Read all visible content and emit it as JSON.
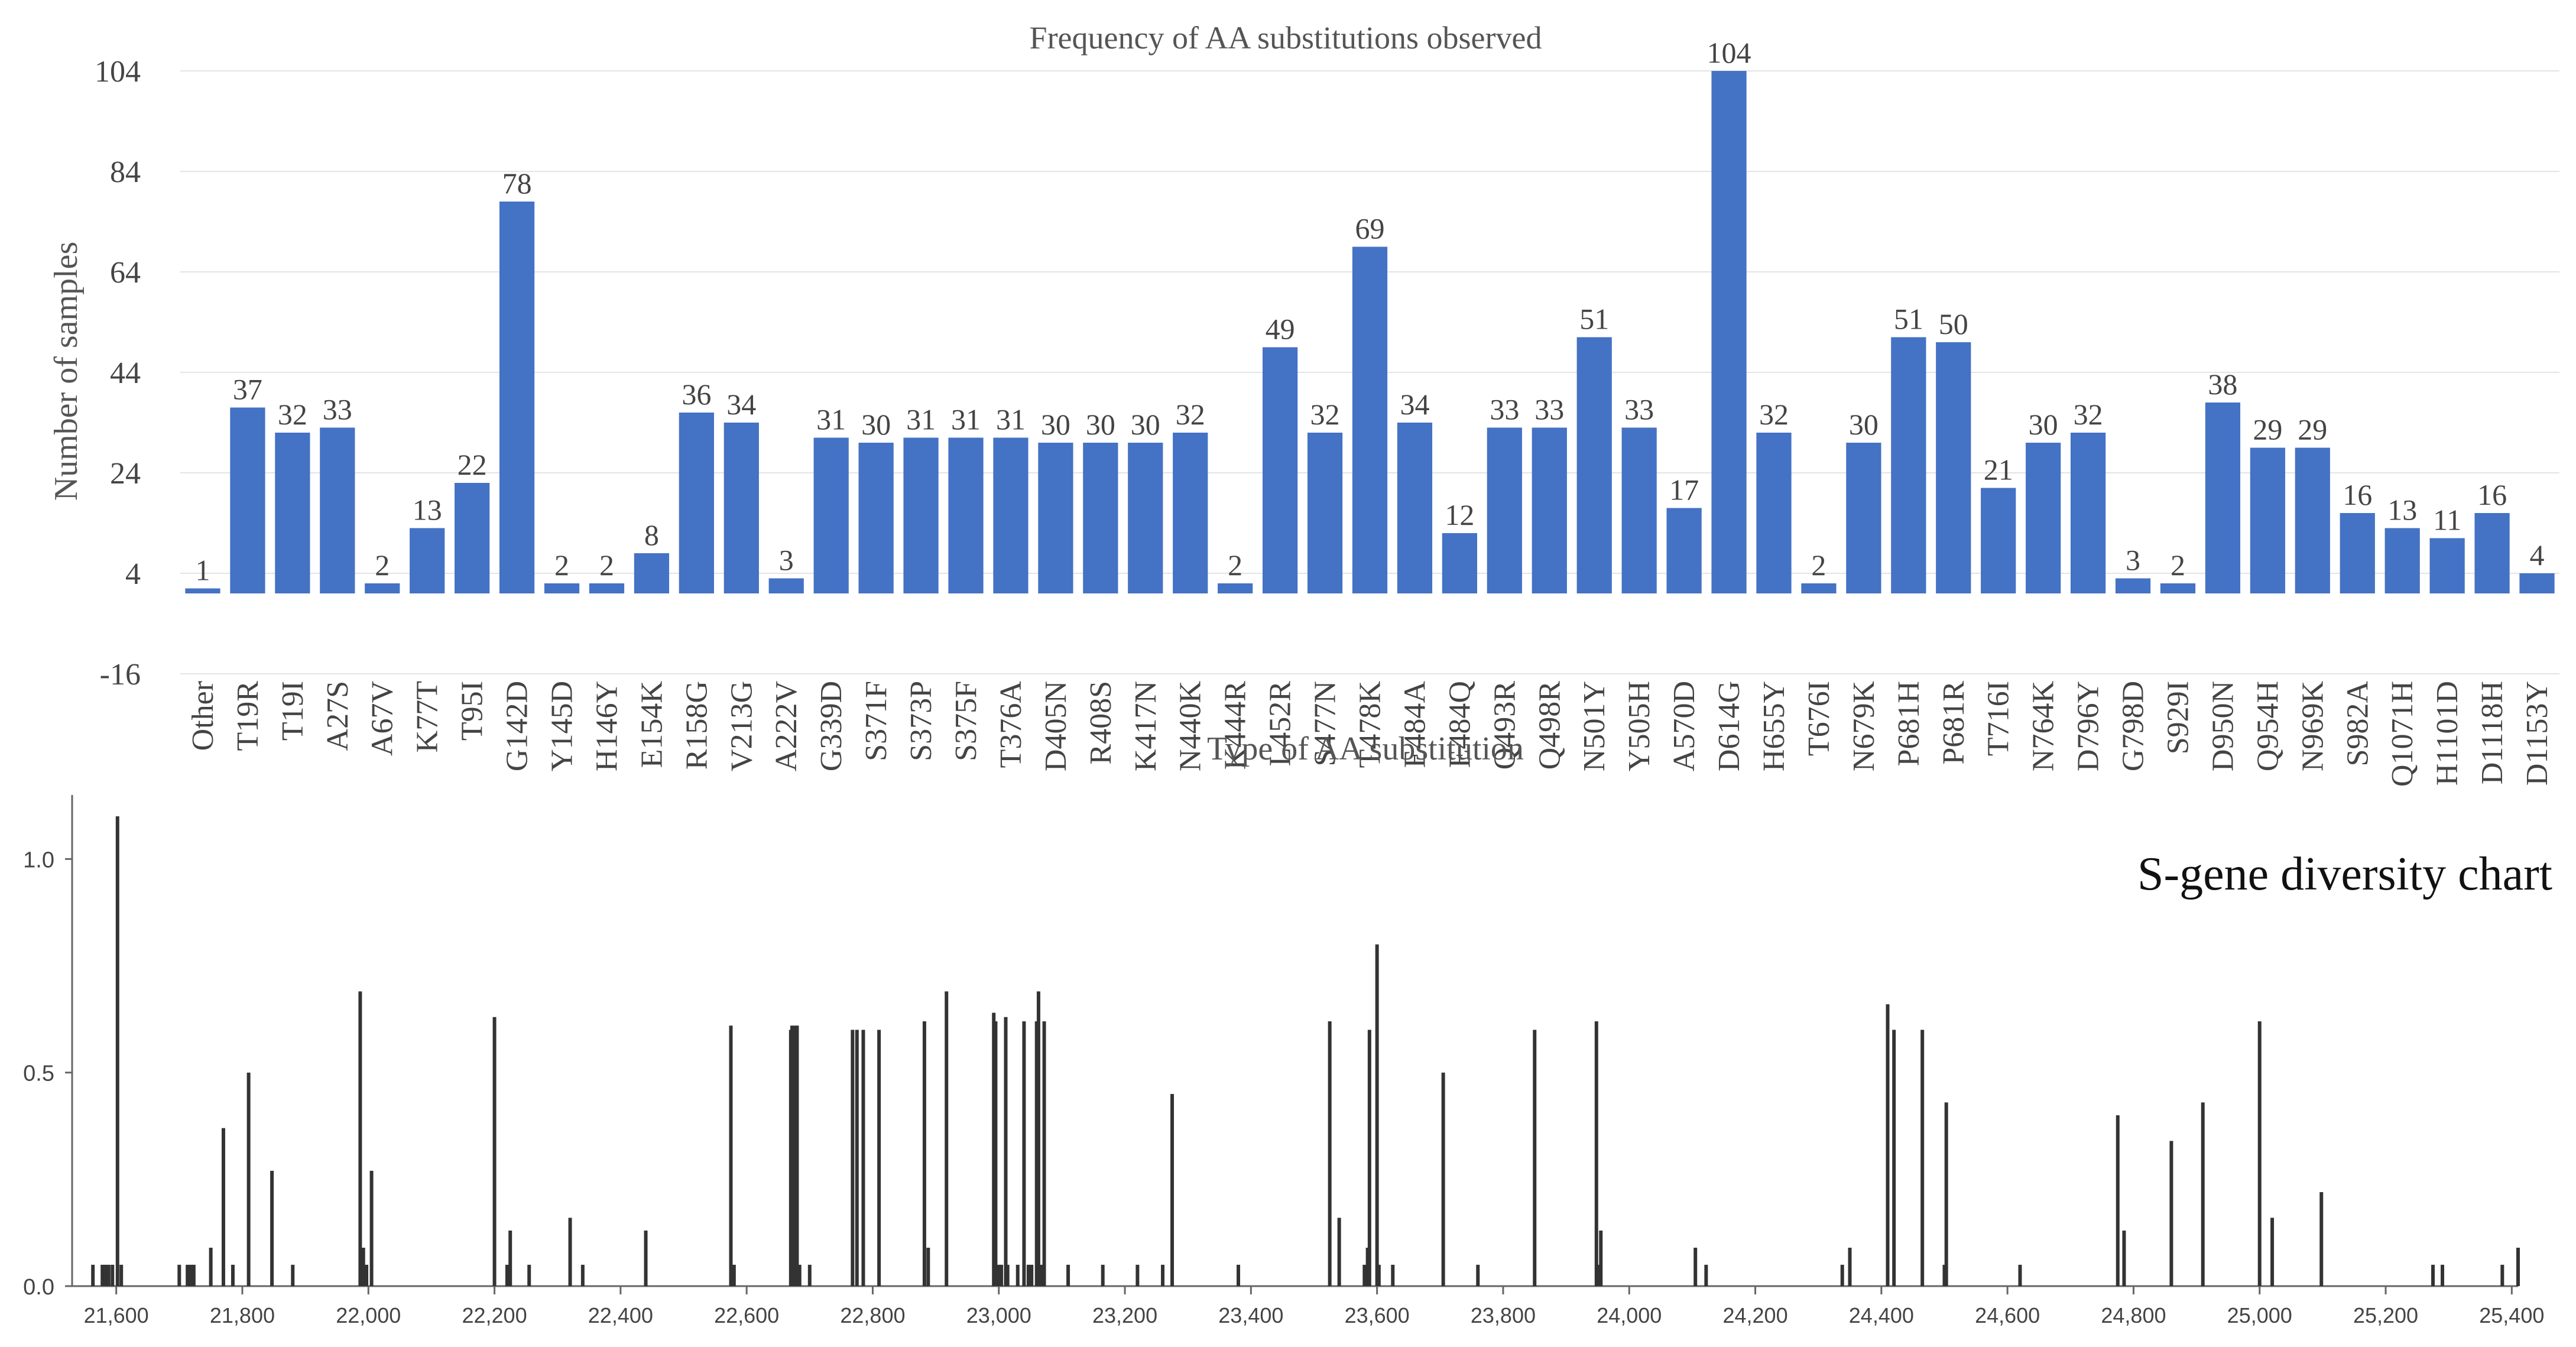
{
  "bar_chart_title": "Frequency of AA substitutions observed",
  "diversity_chart_title": "S-gene diversity chart",
  "colors": {
    "bar": "#4472C4",
    "spike": "#333333",
    "grid": "#e4e4e4",
    "axis": "#555555",
    "text": "#444444"
  },
  "chart_data": [
    {
      "type": "bar",
      "title": "Frequency of AA substitutions observed",
      "xlabel": "Type of AA substitution",
      "ylabel": "Number of samples",
      "ylim": [
        -16,
        104
      ],
      "yticks": [
        104,
        84,
        64,
        44,
        24,
        4,
        -16
      ],
      "grid": true,
      "categories": [
        "Other",
        "T19R",
        "T19I",
        "A27S",
        "A67V",
        "K77T",
        "T95I",
        "G142D",
        "Y145D",
        "H146Y",
        "E154K",
        "R158G",
        "V213G",
        "A222V",
        "G339D",
        "S371F",
        "S373P",
        "S375F",
        "T376A",
        "D405N",
        "R408S",
        "K417N",
        "N440K",
        "K444R",
        "L452R",
        "S477N",
        "T478K",
        "E484A",
        "E484Q",
        "Q493R",
        "Q498R",
        "N501Y",
        "Y505H",
        "A570D",
        "D614G",
        "H655Y",
        "T676I",
        "N679K",
        "P681H",
        "P681R",
        "T716I",
        "N764K",
        "D796Y",
        "G798D",
        "S929I",
        "D950N",
        "Q954H",
        "N969K",
        "S982A",
        "Q1071H",
        "H1101D",
        "D1118H",
        "D1153Y"
      ],
      "values": [
        1,
        37,
        32,
        33,
        2,
        13,
        22,
        78,
        2,
        2,
        8,
        36,
        34,
        3,
        31,
        30,
        31,
        31,
        31,
        30,
        30,
        30,
        32,
        2,
        49,
        32,
        69,
        34,
        12,
        33,
        33,
        51,
        33,
        17,
        104,
        32,
        2,
        30,
        51,
        50,
        21,
        30,
        32,
        3,
        2,
        38,
        29,
        29,
        16,
        13,
        11,
        16,
        4
      ]
    },
    {
      "type": "bar",
      "subtype": "spike",
      "title": "S-gene diversity chart",
      "ylim": [
        0,
        1.15
      ],
      "yticks": [
        "1.0",
        "0.5",
        "0.0"
      ],
      "ytick_values": [
        1.0,
        0.5,
        0.0
      ],
      "xlim": [
        21530,
        25410
      ],
      "xticks": [
        "21,600",
        "21,800",
        "22,000",
        "22,200",
        "22,400",
        "22,600",
        "22,800",
        "23,000",
        "23,200",
        "23,400",
        "23,600",
        "23,800",
        "24,000",
        "24,200",
        "24,400",
        "24,600",
        "24,800",
        "25,000",
        "25,200",
        "25,400"
      ],
      "xtick_values": [
        21600,
        21800,
        22000,
        22200,
        22400,
        22600,
        22800,
        23000,
        23200,
        23400,
        23600,
        23800,
        24000,
        24200,
        24400,
        24600,
        24800,
        25000,
        25200,
        25400
      ],
      "x": [
        21563,
        21578,
        21583,
        21588,
        21594,
        21602,
        21608,
        21700,
        21713,
        21718,
        21723,
        21750,
        21770,
        21785,
        21810,
        21847,
        21880,
        21987,
        21992,
        21997,
        22005,
        22200,
        22220,
        22225,
        22255,
        22320,
        22340,
        22440,
        22575,
        22580,
        22670,
        22672,
        22676,
        22680,
        22684,
        22700,
        22768,
        22775,
        22785,
        22810,
        22882,
        22888,
        22917,
        22992,
        22995,
        23000,
        23004,
        23011,
        23014,
        23030,
        23040,
        23047,
        23052,
        23060,
        23063,
        23068,
        23072,
        23110,
        23165,
        23220,
        23260,
        23275,
        23380,
        23525,
        23540,
        23580,
        23585,
        23588,
        23600,
        23603,
        23625,
        23705,
        23760,
        23850,
        23948,
        23951,
        23955,
        24105,
        24122,
        24338,
        24350,
        24410,
        24420,
        24465,
        24500,
        24503,
        24620,
        24775,
        24785,
        24860,
        24910,
        25000,
        25020,
        25098,
        25275,
        25290,
        25385,
        25410
      ],
      "y": [
        0.05,
        0.05,
        0.05,
        0.05,
        0.05,
        1.1,
        0.05,
        0.05,
        0.05,
        0.05,
        0.05,
        0.09,
        0.37,
        0.05,
        0.5,
        0.27,
        0.05,
        0.69,
        0.09,
        0.05,
        0.27,
        0.63,
        0.05,
        0.13,
        0.05,
        0.16,
        0.05,
        0.13,
        0.61,
        0.05,
        0.6,
        0.61,
        0.61,
        0.61,
        0.05,
        0.05,
        0.6,
        0.6,
        0.6,
        0.6,
        0.62,
        0.09,
        0.69,
        0.64,
        0.62,
        0.05,
        0.05,
        0.63,
        0.05,
        0.05,
        0.62,
        0.05,
        0.05,
        0.62,
        0.69,
        0.05,
        0.62,
        0.05,
        0.05,
        0.05,
        0.05,
        0.45,
        0.05,
        0.62,
        0.16,
        0.05,
        0.09,
        0.6,
        0.8,
        0.05,
        0.05,
        0.5,
        0.05,
        0.6,
        0.62,
        0.05,
        0.13,
        0.09,
        0.05,
        0.05,
        0.09,
        0.66,
        0.6,
        0.6,
        0.05,
        0.43,
        0.05,
        0.4,
        0.13,
        0.34,
        0.43,
        0.62,
        0.16,
        0.22,
        0.05,
        0.05,
        0.05,
        0.09
      ]
    }
  ]
}
